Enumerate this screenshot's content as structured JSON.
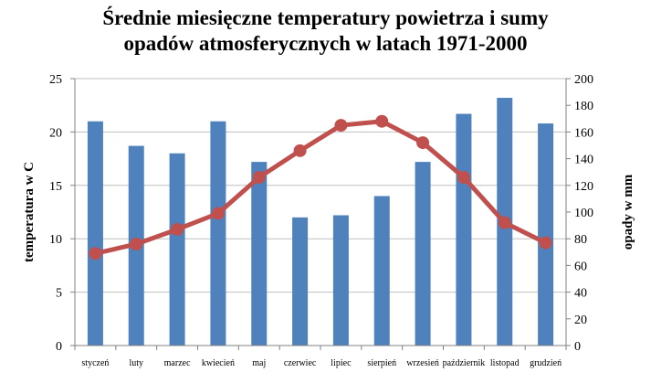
{
  "chart_data": {
    "type": "bar+line",
    "title_lines": [
      "Średnie miesięczne temperatury powietrza i sumy",
      "opadów atmosferycznych w latach 1971-2000"
    ],
    "ylabel_left": "temperatura w   C",
    "ylabel_right": "opady w mm",
    "categories": [
      "styczeń",
      "luty",
      "marzec",
      "kwiecień",
      "maj",
      "czerwiec",
      "lipiec",
      "sierpień",
      "wrzesień",
      "październik",
      "listopad",
      "grudzień"
    ],
    "left_axis": {
      "ylim": [
        0,
        25
      ],
      "ticks": [
        "0",
        "5",
        "10",
        "15",
        "20",
        "25"
      ]
    },
    "right_axis": {
      "ylim": [
        0,
        200
      ],
      "ticks": [
        "0",
        "20",
        "40",
        "60",
        "80",
        "100",
        "120",
        "140",
        "160",
        "180",
        "200"
      ]
    },
    "grid": true,
    "series": [
      {
        "kind": "bar",
        "axis": "left",
        "color": "#4F81BD",
        "values": [
          21.0,
          18.7,
          18.0,
          21.0,
          17.2,
          12.0,
          12.2,
          14.0,
          17.2,
          21.7,
          23.2,
          20.8
        ]
      },
      {
        "kind": "line",
        "axis": "right",
        "color": "#C0504D",
        "values": [
          69,
          76,
          87,
          99,
          126,
          146,
          165,
          168,
          152,
          126,
          92,
          77
        ]
      }
    ]
  }
}
